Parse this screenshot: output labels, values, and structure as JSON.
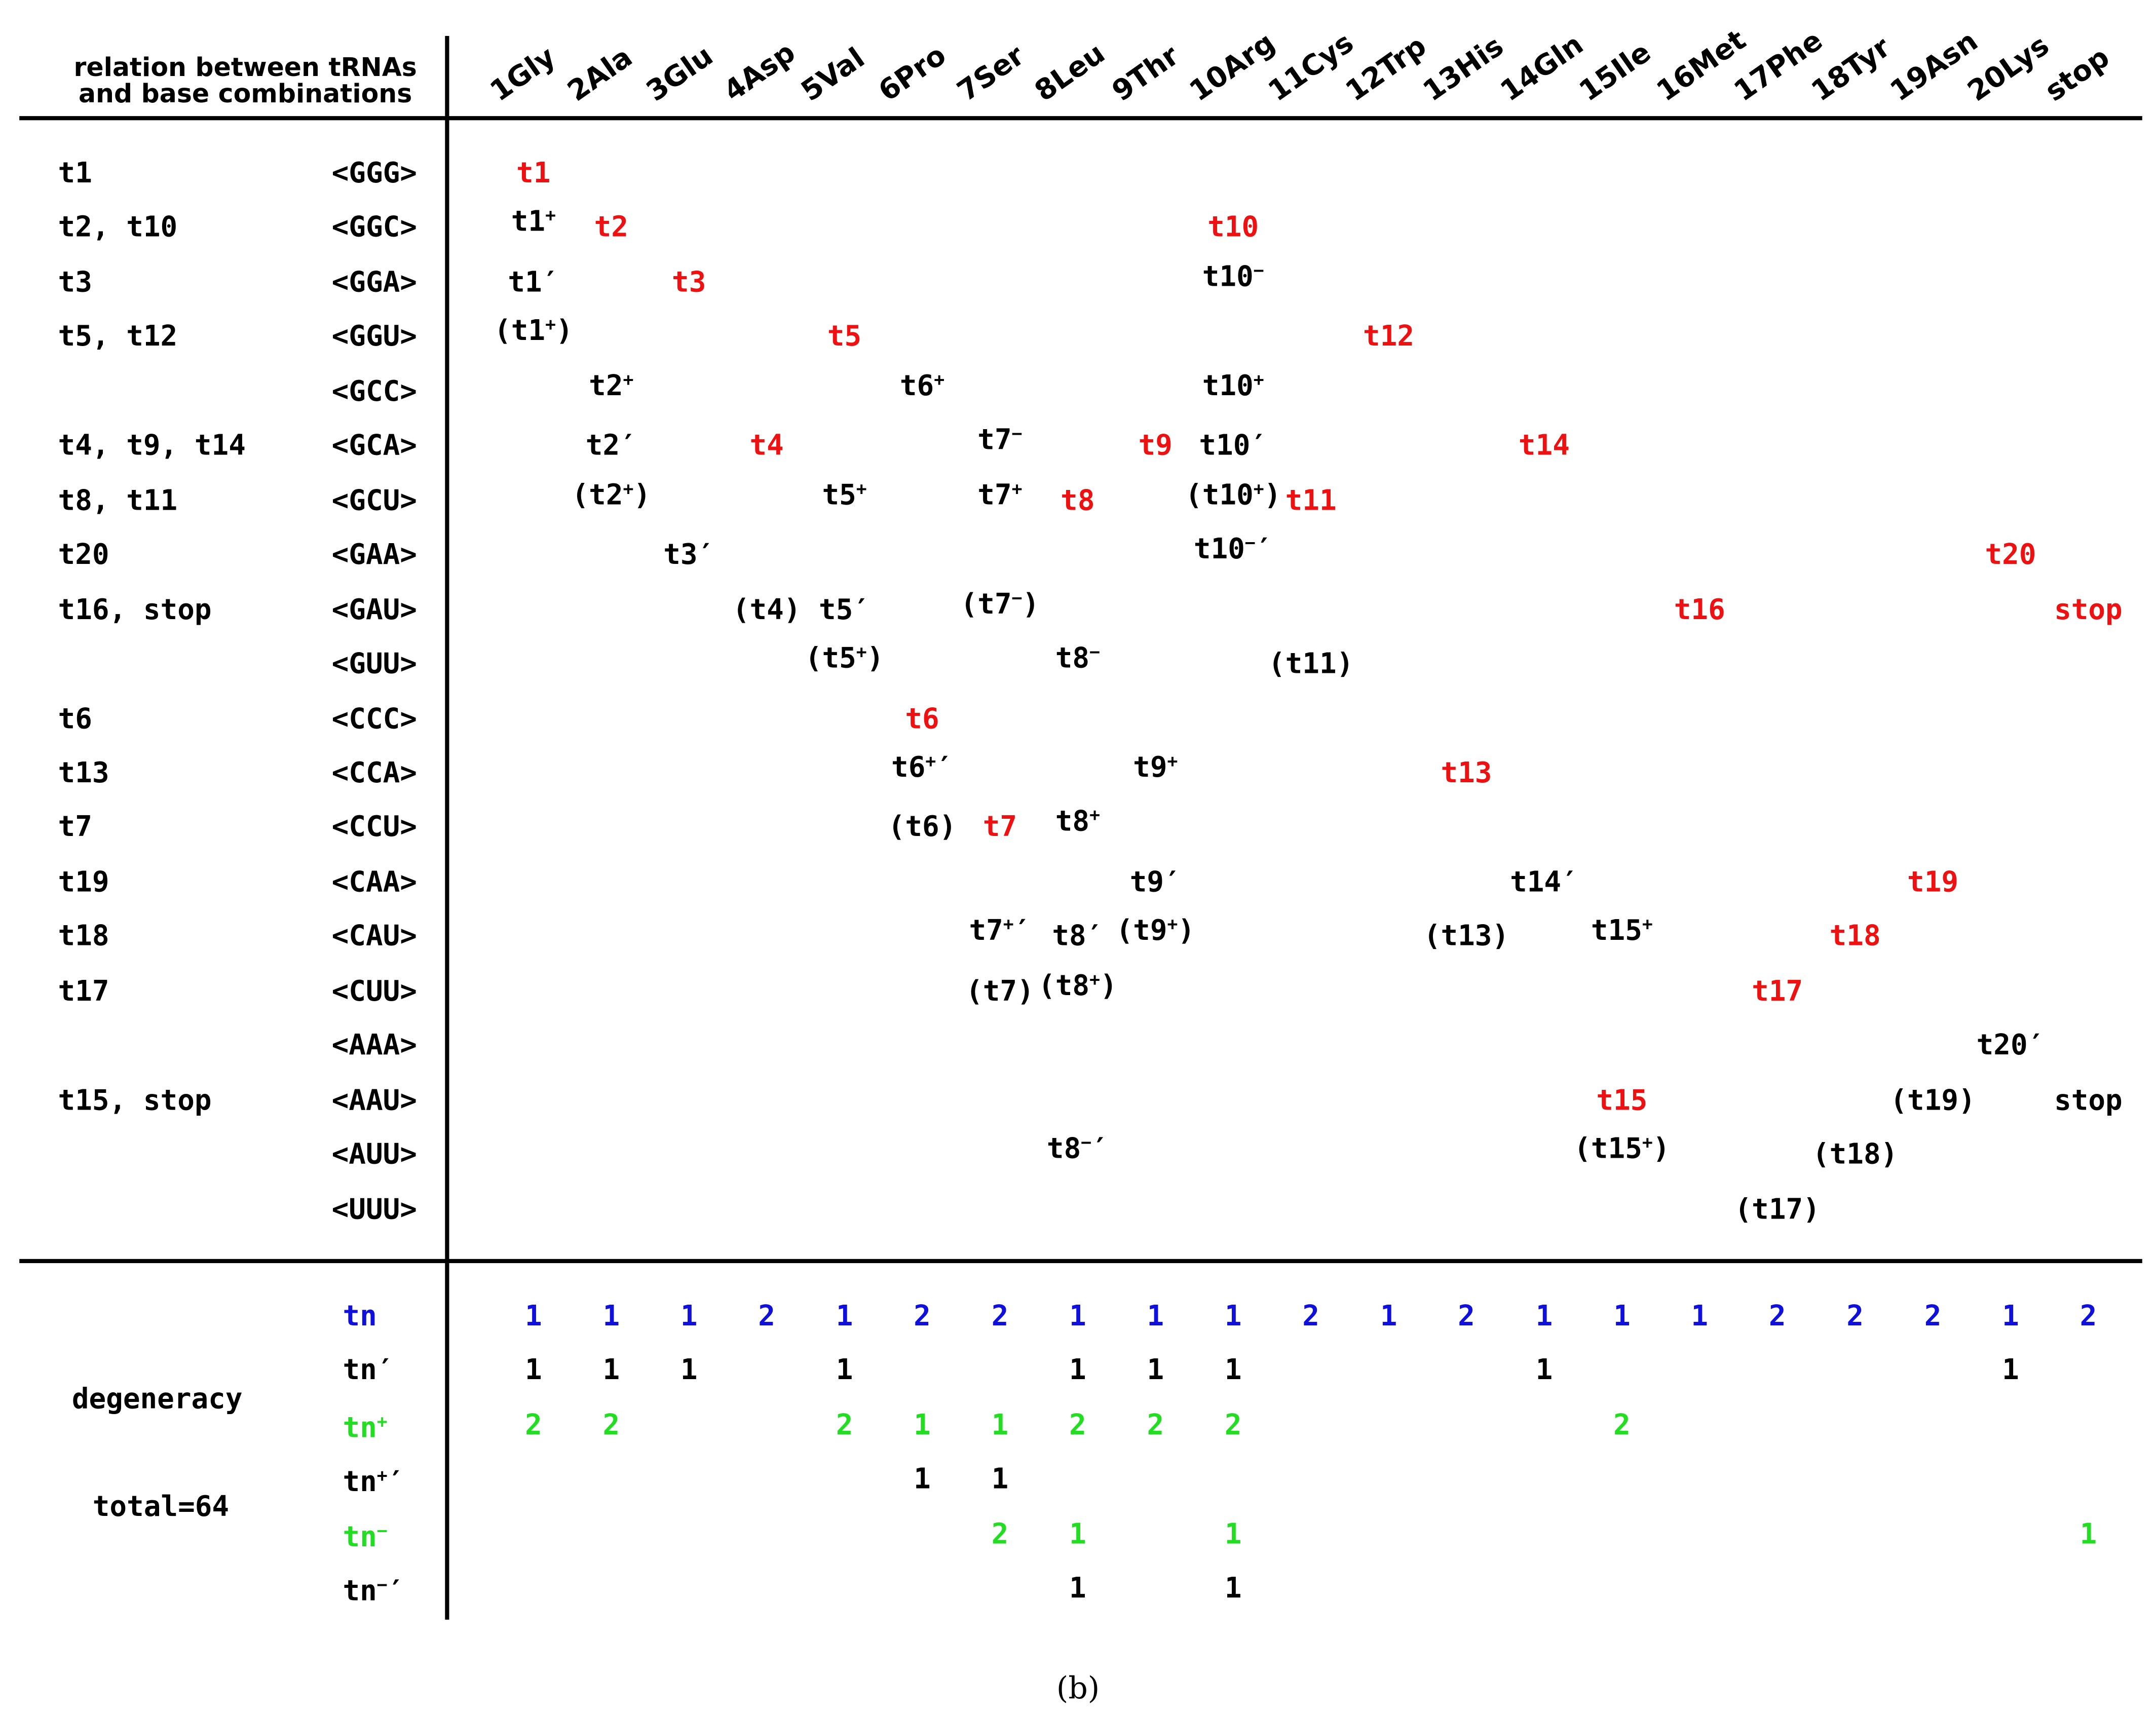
{
  "header_title_line1": "relation between tRNAs",
  "header_title_line2": "and base combinations",
  "amino_acids": [
    "1Gly",
    "2Ala",
    "3Glu",
    "4Asp",
    "5Val",
    "6Pro",
    "7Ser",
    "8Leu",
    "9Thr",
    "10Arg",
    "11Cys",
    "12Trp",
    "13His",
    "14Gln",
    "15Ile",
    "16Met",
    "17Phe",
    "18Tyr",
    "19Asn",
    "20Lys",
    "stop"
  ],
  "rows": [
    {
      "label": "t1",
      "codon": "<GGG>",
      "cells": [
        {
          "col": 0,
          "text": "t1",
          "color": "red"
        }
      ]
    },
    {
      "label": "t2, t10",
      "codon": "<GGC>",
      "cells": [
        {
          "col": 0,
          "text": "t1",
          "sup": "+"
        },
        {
          "col": 1,
          "text": "t2",
          "color": "red"
        },
        {
          "col": 9,
          "text": "t10",
          "color": "red"
        }
      ]
    },
    {
      "label": "t3",
      "codon": "<GGA>",
      "cells": [
        {
          "col": 0,
          "text": "t1′"
        },
        {
          "col": 2,
          "text": "t3",
          "color": "red"
        },
        {
          "col": 9,
          "text": "t10",
          "sup": "−"
        }
      ]
    },
    {
      "label": "t5, t12",
      "codon": "<GGU>",
      "cells": [
        {
          "col": 0,
          "text": "(t1",
          "sup": "+",
          "post": ")"
        },
        {
          "col": 4,
          "text": "t5",
          "color": "red"
        },
        {
          "col": 11,
          "text": "t12",
          "color": "red"
        }
      ]
    },
    {
      "label": "",
      "codon": "<GCC>",
      "cells": [
        {
          "col": 1,
          "text": "t2",
          "sup": "+"
        },
        {
          "col": 5,
          "text": "t6",
          "sup": "+"
        },
        {
          "col": 9,
          "text": "t10",
          "sup": "+"
        }
      ]
    },
    {
      "label": "t4, t9, t14",
      "codon": "<GCA>",
      "cells": [
        {
          "col": 1,
          "text": "t2′"
        },
        {
          "col": 3,
          "text": "t4",
          "color": "red"
        },
        {
          "col": 6,
          "text": "t7",
          "sup": "−"
        },
        {
          "col": 8,
          "text": "t9",
          "color": "red"
        },
        {
          "col": 9,
          "text": "t10′"
        },
        {
          "col": 13,
          "text": "t14",
          "color": "red"
        }
      ]
    },
    {
      "label": "t8, t11",
      "codon": "<GCU>",
      "cells": [
        {
          "col": 1,
          "text": "(t2",
          "sup": "+",
          "post": ")"
        },
        {
          "col": 4,
          "text": "t5",
          "sup": "+"
        },
        {
          "col": 6,
          "text": "t7",
          "sup": "+"
        },
        {
          "col": 7,
          "text": "t8",
          "color": "red"
        },
        {
          "col": 9,
          "text": "(t10",
          "sup": "+",
          "post": ")"
        },
        {
          "col": 10,
          "text": "t11",
          "color": "red"
        }
      ]
    },
    {
      "label": "t20",
      "codon": "<GAA>",
      "cells": [
        {
          "col": 2,
          "text": "t3′"
        },
        {
          "col": 9,
          "text": "t10",
          "sup": "−",
          "post": "′"
        },
        {
          "col": 19,
          "text": "t20",
          "color": "red"
        }
      ]
    },
    {
      "label": "t16, stop",
      "codon": "<GAU>",
      "cells": [
        {
          "col": 3,
          "text": "(t4)"
        },
        {
          "col": 4,
          "text": "t5′"
        },
        {
          "col": 6,
          "text": "(t7",
          "sup": "−",
          "post": ")"
        },
        {
          "col": 15,
          "text": "t16",
          "color": "red"
        },
        {
          "col": 20,
          "text": "stop",
          "color": "red"
        }
      ]
    },
    {
      "label": "",
      "codon": "<GUU>",
      "cells": [
        {
          "col": 4,
          "text": "(t5",
          "sup": "+",
          "post": ")"
        },
        {
          "col": 7,
          "text": "t8",
          "sup": "−"
        },
        {
          "col": 10,
          "text": "(t11)"
        }
      ]
    },
    {
      "label": "t6",
      "codon": "<CCC>",
      "cells": [
        {
          "col": 5,
          "text": "t6",
          "color": "red"
        }
      ]
    },
    {
      "label": "t13",
      "codon": "<CCA>",
      "cells": [
        {
          "col": 5,
          "text": "t6",
          "sup": "+",
          "post": "′"
        },
        {
          "col": 8,
          "text": "t9",
          "sup": "+"
        },
        {
          "col": 12,
          "text": "t13",
          "color": "red"
        }
      ]
    },
    {
      "label": "t7",
      "codon": "<CCU>",
      "cells": [
        {
          "col": 5,
          "text": "(t6)"
        },
        {
          "col": 6,
          "text": "t7",
          "color": "red"
        },
        {
          "col": 7,
          "text": "t8",
          "sup": "+"
        }
      ]
    },
    {
      "label": "t19",
      "codon": "<CAA>",
      "cells": [
        {
          "col": 8,
          "text": "t9′"
        },
        {
          "col": 13,
          "text": "t14′"
        },
        {
          "col": 18,
          "text": "t19",
          "color": "red"
        }
      ]
    },
    {
      "label": "t18",
      "codon": "<CAU>",
      "cells": [
        {
          "col": 6,
          "text": "t7",
          "sup": "+",
          "post": "′"
        },
        {
          "col": 7,
          "text": "t8′"
        },
        {
          "col": 8,
          "text": "(t9",
          "sup": "+",
          "post": ")"
        },
        {
          "col": 12,
          "text": "(t13)"
        },
        {
          "col": 14,
          "text": "t15",
          "sup": "+"
        },
        {
          "col": 17,
          "text": "t18",
          "color": "red"
        }
      ]
    },
    {
      "label": "t17",
      "codon": "<CUU>",
      "cells": [
        {
          "col": 6,
          "text": "(t7)"
        },
        {
          "col": 7,
          "text": "(t8",
          "sup": "+",
          "post": ")"
        },
        {
          "col": 16,
          "text": "t17",
          "color": "red"
        }
      ]
    },
    {
      "label": "",
      "codon": "<AAA>",
      "cells": [
        {
          "col": 19,
          "text": "t20′"
        }
      ]
    },
    {
      "label": "t15, stop",
      "codon": "<AAU>",
      "cells": [
        {
          "col": 14,
          "text": "t15",
          "color": "red"
        },
        {
          "col": 18,
          "text": "(t19)"
        },
        {
          "col": 20,
          "text": "stop"
        }
      ]
    },
    {
      "label": "",
      "codon": "<AUU>",
      "cells": [
        {
          "col": 7,
          "text": "t8",
          "sup": "−",
          "post": "′"
        },
        {
          "col": 14,
          "text": "(t15",
          "sup": "+",
          "post": ")"
        },
        {
          "col": 17,
          "text": "(t18)"
        }
      ]
    },
    {
      "label": "",
      "codon": "<UUU>",
      "cells": [
        {
          "col": 16,
          "text": "(t17)"
        }
      ]
    }
  ],
  "degeneracy_label": "degeneracy",
  "total_label": "total=64",
  "deg_rows": [
    {
      "base": "tn",
      "sup": "",
      "post": "",
      "color": "blue",
      "values": [
        "1",
        "1",
        "1",
        "2",
        "1",
        "2",
        "2",
        "1",
        "1",
        "1",
        "2",
        "1",
        "2",
        "1",
        "1",
        "1",
        "2",
        "2",
        "2",
        "1",
        "2"
      ]
    },
    {
      "base": "tn′",
      "sup": "",
      "post": "",
      "color": "black",
      "values": [
        "1",
        "1",
        "1",
        "",
        "1",
        "",
        "",
        "1",
        "1",
        "1",
        "",
        "",
        "",
        "1",
        "",
        "",
        "",
        "",
        "",
        "1",
        ""
      ]
    },
    {
      "base": "tn",
      "sup": "+",
      "post": "",
      "color": "green",
      "values": [
        "2",
        "2",
        "",
        "",
        "2",
        "1",
        "1",
        "2",
        "2",
        "2",
        "",
        "",
        "",
        "",
        "2",
        "",
        "",
        "",
        "",
        "",
        ""
      ]
    },
    {
      "base": "tn",
      "sup": "+",
      "post": "′",
      "color": "black",
      "values": [
        "",
        "",
        "",
        "",
        "",
        "1",
        "1",
        "",
        "",
        "",
        "",
        "",
        "",
        "",
        "",
        "",
        "",
        "",
        "",
        "",
        ""
      ]
    },
    {
      "base": "tn",
      "sup": "−",
      "post": "",
      "color": "green",
      "values": [
        "",
        "",
        "",
        "",
        "",
        "",
        "2",
        "1",
        "",
        "1",
        "",
        "",
        "",
        "",
        "",
        "",
        "",
        "",
        "",
        "",
        "1"
      ]
    },
    {
      "base": "tn",
      "sup": "−",
      "post": "′",
      "color": "black",
      "values": [
        "",
        "",
        "",
        "",
        "",
        "",
        "",
        "1",
        "",
        "1",
        "",
        "",
        "",
        "",
        "",
        "",
        "",
        "",
        "",
        "",
        ""
      ]
    }
  ],
  "caption": "(b)"
}
